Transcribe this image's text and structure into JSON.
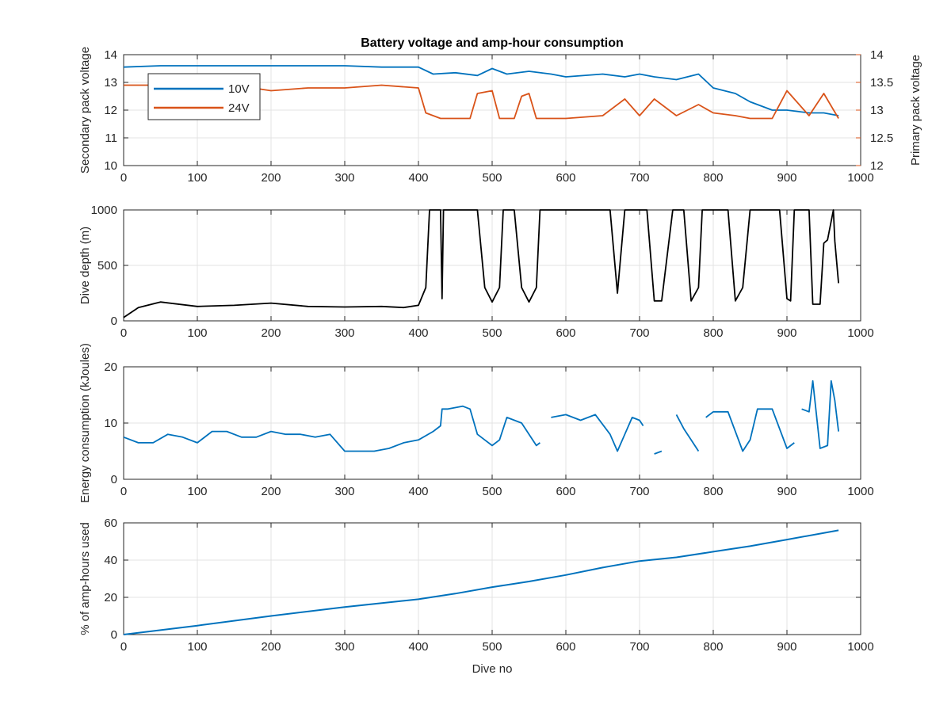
{
  "figure_title": "Battery voltage and amp-hour consumption",
  "colors": {
    "series_10v": "#0072BD",
    "series_24v": "#D95319",
    "depth": "#000000",
    "grid": "#e3e3e3",
    "axes": "#262626"
  },
  "chart_data": [
    {
      "type": "line",
      "title": "Battery voltage and amp-hour consumption",
      "xlabel": "",
      "ylabel": "Secondary pack voltage",
      "y2label": "Primary pack voltage",
      "xlim": [
        0,
        1000
      ],
      "ylim": [
        10,
        14
      ],
      "y2lim": [
        12,
        14
      ],
      "xticks": [
        "0",
        "100",
        "200",
        "300",
        "400",
        "500",
        "600",
        "700",
        "800",
        "900",
        "1000"
      ],
      "yticks": [
        "10",
        "11",
        "12",
        "13",
        "14"
      ],
      "y2ticks": [
        "12",
        "12.5",
        "13",
        "13.5",
        "14"
      ],
      "grid": true,
      "legend": "top-left",
      "series": [
        {
          "name": "10V",
          "axis": "left",
          "x": [
            0,
            50,
            100,
            150,
            200,
            250,
            300,
            350,
            400,
            420,
            450,
            480,
            500,
            520,
            550,
            580,
            600,
            650,
            680,
            700,
            720,
            750,
            780,
            800,
            830,
            850,
            880,
            900,
            930,
            950,
            970
          ],
          "y": [
            13.55,
            13.6,
            13.6,
            13.6,
            13.6,
            13.6,
            13.6,
            13.55,
            13.55,
            13.3,
            13.35,
            13.25,
            13.5,
            13.3,
            13.4,
            13.3,
            13.2,
            13.3,
            13.2,
            13.3,
            13.2,
            13.1,
            13.3,
            12.8,
            12.6,
            12.3,
            12.0,
            12.0,
            11.9,
            11.9,
            11.8
          ]
        },
        {
          "name": "24V",
          "axis": "right",
          "x": [
            0,
            50,
            100,
            150,
            200,
            250,
            300,
            350,
            400,
            410,
            430,
            470,
            480,
            500,
            510,
            530,
            540,
            550,
            560,
            600,
            650,
            680,
            700,
            720,
            750,
            780,
            800,
            830,
            850,
            880,
            900,
            930,
            950,
            970
          ],
          "y": [
            13.45,
            13.45,
            13.45,
            13.45,
            13.35,
            13.4,
            13.4,
            13.45,
            13.4,
            12.95,
            12.85,
            12.85,
            13.3,
            13.35,
            12.85,
            12.85,
            13.25,
            13.3,
            12.85,
            12.85,
            12.9,
            13.2,
            12.9,
            13.2,
            12.9,
            13.1,
            12.95,
            12.9,
            12.85,
            12.85,
            13.35,
            12.9,
            13.3,
            12.85
          ]
        }
      ]
    },
    {
      "type": "line",
      "xlabel": "",
      "ylabel": "Dive depth (m)",
      "xlim": [
        0,
        1000
      ],
      "ylim": [
        1000,
        0
      ],
      "y_reversed": true,
      "xticks": [
        "0",
        "100",
        "200",
        "300",
        "400",
        "500",
        "600",
        "700",
        "800",
        "900",
        "1000"
      ],
      "yticks": [
        "0",
        "500",
        "1000"
      ],
      "grid": true,
      "series": [
        {
          "x": [
            0,
            20,
            50,
            100,
            150,
            200,
            250,
            300,
            350,
            380,
            400,
            410,
            415,
            420,
            430,
            432,
            434,
            440,
            480,
            490,
            500,
            510,
            515,
            530,
            540,
            550,
            560,
            565,
            650,
            660,
            670,
            680,
            690,
            700,
            710,
            720,
            730,
            745,
            760,
            770,
            780,
            785,
            800,
            820,
            830,
            840,
            850,
            880,
            890,
            900,
            905,
            910,
            930,
            935,
            945,
            950,
            955,
            963,
            965,
            970
          ],
          "y": [
            30,
            120,
            170,
            130,
            140,
            160,
            130,
            125,
            130,
            120,
            140,
            300,
            1000,
            1000,
            1000,
            200,
            1000,
            1000,
            1000,
            300,
            170,
            300,
            1000,
            1000,
            300,
            170,
            300,
            1000,
            1000,
            1000,
            250,
            1000,
            1000,
            1000,
            1000,
            180,
            180,
            1000,
            1000,
            180,
            300,
            1000,
            1000,
            1000,
            180,
            300,
            1000,
            1000,
            1000,
            200,
            180,
            1000,
            1000,
            150,
            150,
            700,
            730,
            1000,
            720,
            340
          ]
        }
      ]
    },
    {
      "type": "line",
      "xlabel": "",
      "ylabel": "Energy consumption (kJoules)",
      "xlim": [
        0,
        1000
      ],
      "ylim": [
        0,
        20
      ],
      "xticks": [
        "0",
        "100",
        "200",
        "300",
        "400",
        "500",
        "600",
        "700",
        "800",
        "900",
        "1000"
      ],
      "yticks": [
        "0",
        "10",
        "20"
      ],
      "grid": true,
      "series": [
        {
          "x": [
            0,
            20,
            40,
            60,
            80,
            100,
            120,
            140,
            160,
            180,
            200,
            220,
            240,
            260,
            280,
            300,
            320,
            340,
            360,
            380,
            400,
            420,
            430,
            432,
            440,
            460,
            470,
            480,
            490,
            500,
            510,
            520,
            540,
            560,
            565,
            575,
            580,
            600,
            620,
            640,
            660,
            670,
            680,
            690,
            700,
            705,
            710,
            720,
            730,
            740,
            750,
            760,
            770,
            780,
            785,
            790,
            800,
            820,
            840,
            850,
            860,
            880,
            900,
            910,
            915,
            920,
            930,
            935,
            945,
            955,
            960,
            965,
            970
          ],
          "y": [
            7.5,
            6.5,
            6.5,
            8.0,
            7.5,
            6.5,
            8.5,
            8.5,
            7.5,
            7.5,
            8.5,
            8.0,
            8.0,
            7.5,
            8.0,
            5.0,
            5.0,
            5.0,
            5.5,
            6.5,
            7.0,
            8.5,
            9.5,
            12.5,
            12.5,
            13.0,
            12.5,
            8.0,
            7.0,
            6.0,
            7.0,
            11.0,
            10.0,
            6.0,
            6.5,
            null,
            11.0,
            11.5,
            10.5,
            11.5,
            8.0,
            5.0,
            8.0,
            11.0,
            10.5,
            9.5,
            null,
            4.5,
            5.0,
            null,
            11.5,
            9.0,
            7.0,
            5.0,
            null,
            11.0,
            12.0,
            12.0,
            5.0,
            7.0,
            12.5,
            12.5,
            5.5,
            6.5,
            null,
            12.5,
            12.0,
            17.5,
            5.5,
            6.0,
            17.5,
            14.0,
            8.5
          ]
        }
      ]
    },
    {
      "type": "line",
      "xlabel": "Dive no",
      "ylabel": "% of amp-hours used",
      "xlim": [
        0,
        1000
      ],
      "ylim": [
        0,
        60
      ],
      "xticks": [
        "0",
        "100",
        "200",
        "300",
        "400",
        "500",
        "600",
        "700",
        "800",
        "900",
        "1000"
      ],
      "yticks": [
        "0",
        "20",
        "40",
        "60"
      ],
      "grid": true,
      "series": [
        {
          "x": [
            0,
            100,
            200,
            300,
            400,
            450,
            500,
            550,
            600,
            650,
            700,
            750,
            800,
            850,
            900,
            970
          ],
          "y": [
            0,
            4.8,
            10,
            14.8,
            19,
            22,
            25.5,
            28.5,
            32,
            36,
            39.5,
            41.5,
            44.5,
            47.5,
            51,
            56
          ]
        }
      ]
    }
  ]
}
